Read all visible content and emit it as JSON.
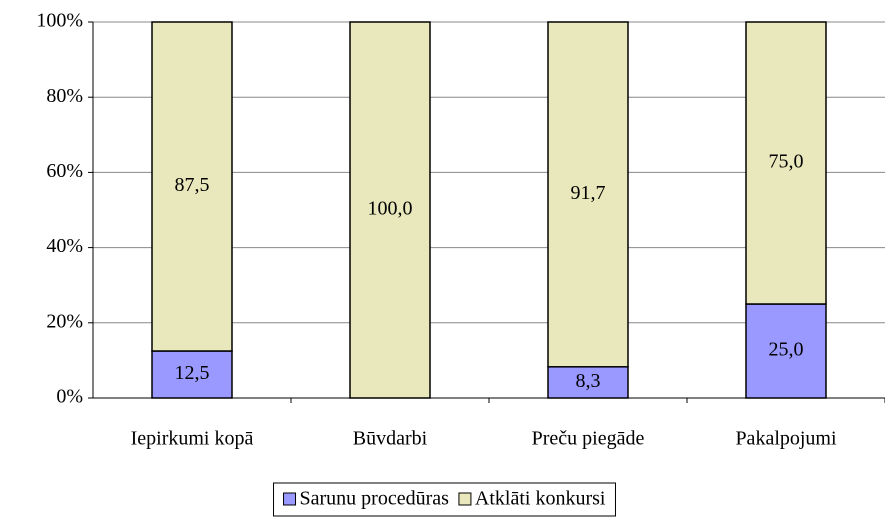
{
  "chart_data": {
    "type": "stacked_bar",
    "categories": [
      "Iepirkumi kopā",
      "Būvdarbi",
      "Preču piegāde",
      "Pakalpojumi"
    ],
    "series": [
      {
        "name": "Sarunu procedūras",
        "color": "#9999ff",
        "values": [
          12.5,
          0,
          8.3,
          25.0
        ],
        "value_labels": [
          "12,5",
          null,
          "8,3",
          "25,0"
        ]
      },
      {
        "name": "Atklāti konkursi",
        "color": "#e8e8bc",
        "values": [
          87.5,
          100.0,
          91.7,
          75.0
        ],
        "value_labels": [
          "87,5",
          "100,0",
          "91,7",
          "75,0"
        ]
      }
    ],
    "ylim": [
      0,
      100
    ],
    "yticks": [
      {
        "value": 0,
        "label": "0%"
      },
      {
        "value": 20,
        "label": "20%"
      },
      {
        "value": 40,
        "label": "40%"
      },
      {
        "value": 60,
        "label": "60%"
      },
      {
        "value": 80,
        "label": "80%"
      },
      {
        "value": 100,
        "label": "100%"
      }
    ],
    "grid": true,
    "legend": "bottom"
  }
}
